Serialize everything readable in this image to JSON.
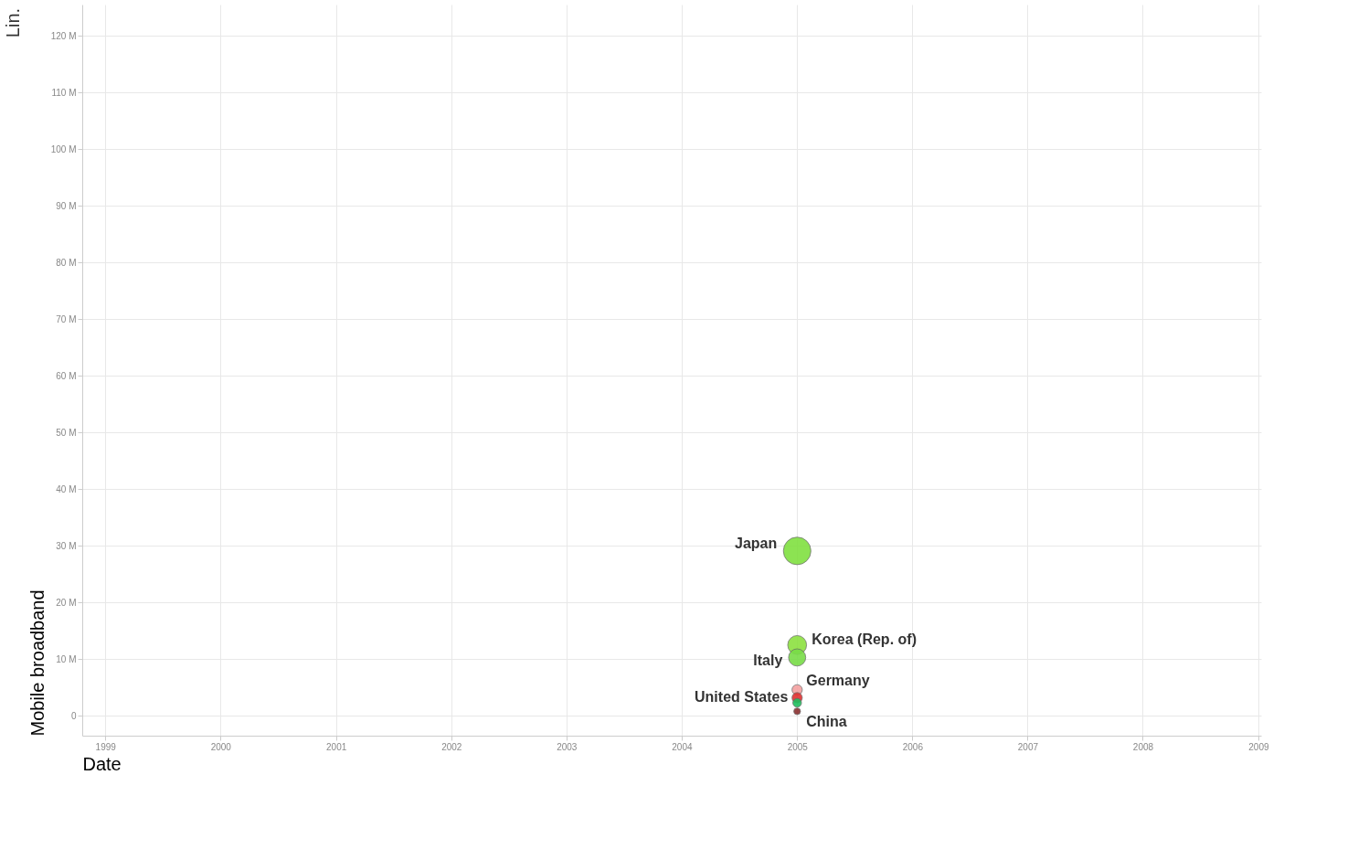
{
  "chart_data": {
    "type": "bubble",
    "xlabel": "Date",
    "ylabel": "Mobile broadband",
    "annotations": [
      "Lin."
    ],
    "x": [
      "2005"
    ],
    "xlim": [
      "1998-10-20",
      "2009-01-10"
    ],
    "xticks": [
      "1999",
      "2000",
      "2001",
      "2002",
      "2003",
      "2004",
      "2005",
      "2006",
      "2007",
      "2008",
      "2009"
    ],
    "ylim": [
      -3.5,
      125.5
    ],
    "yticks": [
      0,
      {
        "value": 10,
        "label": "10 M"
      },
      {
        "value": 20,
        "label": "20 M"
      },
      {
        "value": 30,
        "label": "30 M"
      },
      {
        "value": 40,
        "label": "40 M"
      },
      {
        "value": 50,
        "label": "50 M"
      },
      {
        "value": 60,
        "label": "60 M"
      },
      {
        "value": 70,
        "label": "70 M"
      },
      {
        "value": 80,
        "label": "80 M"
      },
      {
        "value": 90,
        "label": "90 M"
      },
      {
        "value": 100,
        "label": "100 M"
      },
      {
        "value": 110,
        "label": "110 M"
      },
      {
        "value": 120,
        "label": "120 M"
      }
    ],
    "grid": true,
    "series": [
      {
        "name": "Japan",
        "color": "#80e040",
        "values": [
          29.1
        ],
        "sizes": [
          1
        ]
      },
      {
        "name": "Korea (Rep. of)",
        "color": "#8ce040",
        "values": [
          12.5
        ],
        "sizes": [
          0.47
        ]
      },
      {
        "name": "Italy",
        "color": "#78dc48",
        "values": [
          10.3
        ],
        "sizes": [
          0.39
        ]
      },
      {
        "name": "Germany",
        "color": "#f4a0a0",
        "values": [
          4.6
        ],
        "sizes": [
          0.14
        ]
      },
      {
        "name": "United States",
        "color": "#e03030",
        "values": [
          3.2
        ],
        "sizes": [
          0.14
        ]
      },
      {
        "color": "#20c060",
        "values": [
          2.3
        ],
        "sizes": [
          0.1
        ]
      },
      {
        "name": "China",
        "color": "#8b3030",
        "values": [
          0.8
        ],
        "sizes": [
          0.06
        ]
      }
    ]
  }
}
